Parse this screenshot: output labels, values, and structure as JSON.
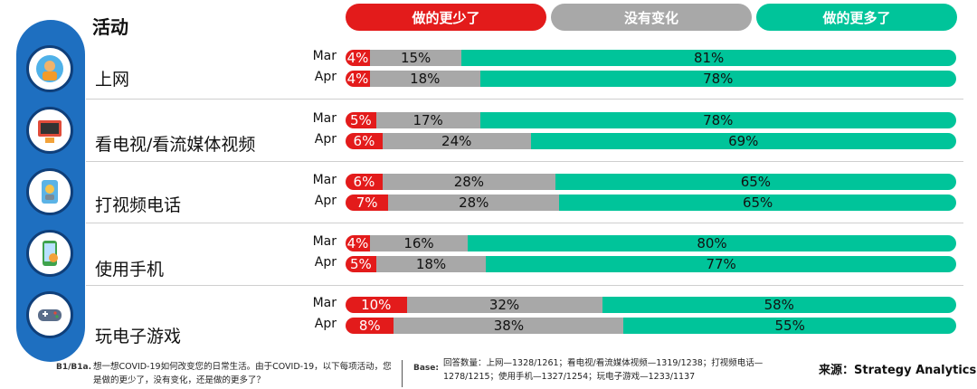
{
  "header": {
    "title": "活动"
  },
  "legend": [
    {
      "label": "做的更少了",
      "color": "#e31b1b"
    },
    {
      "label": "没有变化",
      "color": "#a8a8a8"
    },
    {
      "label": "做的更多了",
      "color": "#00c49a"
    }
  ],
  "chart_data": {
    "type": "bar",
    "orientation": "horizontal",
    "stacked": true,
    "unit": "%",
    "categories": [
      "上网",
      "看电视/看流媒体视频",
      "打视频电话",
      "使用手机",
      "玩电子游戏"
    ],
    "months": [
      "Mar",
      "Apr"
    ],
    "series": [
      {
        "name": "做的更少了",
        "color": "#e31b1b",
        "values": {
          "Mar": [
            4,
            5,
            6,
            4,
            10
          ],
          "Apr": [
            4,
            6,
            7,
            5,
            8
          ]
        }
      },
      {
        "name": "没有变化",
        "color": "#a8a8a8",
        "values": {
          "Mar": [
            15,
            17,
            28,
            16,
            32
          ],
          "Apr": [
            18,
            24,
            28,
            18,
            38
          ]
        }
      },
      {
        "name": "做的更多了",
        "color": "#00c49a",
        "values": {
          "Mar": [
            81,
            78,
            65,
            80,
            58
          ],
          "Apr": [
            78,
            69,
            65,
            77,
            55
          ]
        }
      }
    ]
  },
  "icons": [
    "globe-person-icon",
    "tv-icon",
    "video-call-icon",
    "smartphone-icon",
    "gamepad-icon"
  ],
  "footnote": {
    "code": "B1/B1a.",
    "question": "想一想COVID-19如何改变您的日常生活。由于COVID-19，以下每项活动，您是做的更少了，没有变化，还是做的更多了？",
    "base_label": "Base:",
    "base": "回答数量：上网—1328/1261；看电视/看流媒体视频—1319/1238；打视频电话—1278/1215；使用手机—1327/1254；玩电子游戏—1233/1137",
    "source": "来源：Strategy Analytics"
  }
}
